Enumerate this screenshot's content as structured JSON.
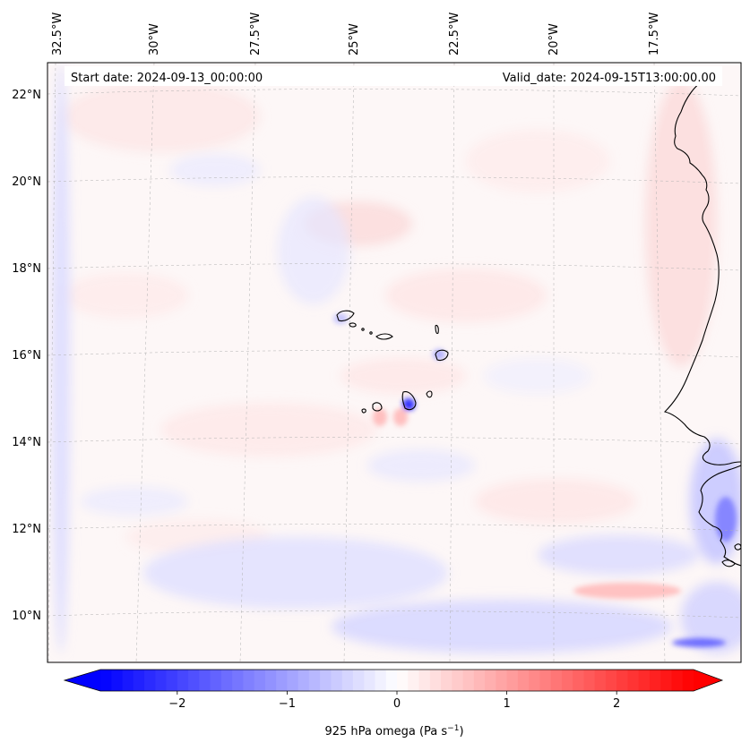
{
  "header": {
    "start_label": "Start date: 2024-09-13_00:00:00",
    "valid_label": "Valid_date: 2024-09-15T13:00:00.00"
  },
  "map": {
    "lon_labels": [
      "32.5°W",
      "30°W",
      "27.5°W",
      "25°W",
      "22.5°W",
      "20°W",
      "17.5°W"
    ],
    "lat_labels": [
      "22°N",
      "20°N",
      "18°N",
      "16°N",
      "14°N",
      "12°N",
      "10°N"
    ],
    "colormap": "bwr",
    "colors": {
      "negative": "#0000ff",
      "zero": "#ffffff",
      "positive": "#ff0000",
      "coastline": "#000000",
      "gridline": "#b0b0b0"
    }
  },
  "colorbar": {
    "label": "925 hPa omega (Pa s",
    "label_exponent": "−1",
    "label_close": ")",
    "vmin": -2.7,
    "vmax": 2.7,
    "extend": "both",
    "ticks": [
      {
        "value": -2,
        "label": "−2"
      },
      {
        "value": -1,
        "label": "−1"
      },
      {
        "value": 0,
        "label": "0"
      },
      {
        "value": 1,
        "label": "1"
      },
      {
        "value": 2,
        "label": "2"
      }
    ]
  }
}
